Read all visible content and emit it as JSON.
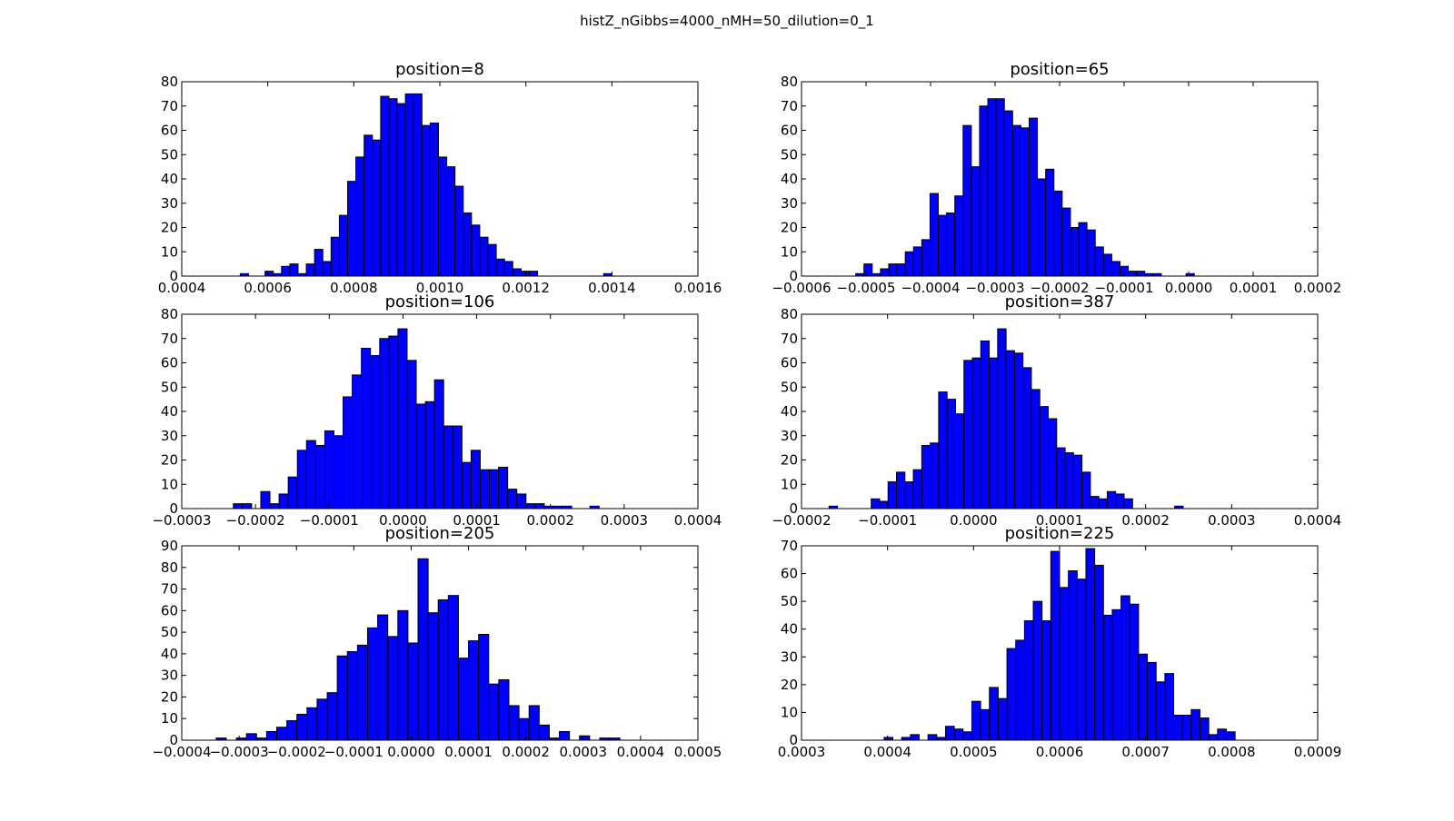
{
  "figure": {
    "suptitle": "histZ_nGibbs=4000_nMH=50_dilution=0_1"
  },
  "colors": {
    "bar_fill": "#0000ff",
    "bar_edge": "#000000",
    "axes": "#000000",
    "background": "#ffffff"
  },
  "chart_data": [
    {
      "type": "bar",
      "title": "position=8",
      "xlabel": "",
      "ylabel": "",
      "xlim": [
        0.0004,
        0.0016
      ],
      "ylim": [
        0,
        80
      ],
      "xticks": [
        "0.0004",
        "0.0006",
        "0.0008",
        "0.0010",
        "0.0012",
        "0.0014",
        "0.0016"
      ],
      "yticks": [
        "0",
        "10",
        "20",
        "30",
        "40",
        "50",
        "60",
        "70",
        "80"
      ],
      "bin_start": 0.000536,
      "bin_width": 1.92e-05,
      "values": [
        1,
        0,
        0,
        2,
        1,
        4,
        5,
        1,
        5,
        11,
        6,
        16,
        25,
        39,
        49,
        58,
        56,
        74,
        73,
        71,
        75,
        75,
        62,
        63,
        49,
        45,
        37,
        26,
        21,
        16,
        13,
        7,
        6,
        3,
        2,
        2,
        0,
        0,
        0,
        0,
        0,
        0,
        0,
        0,
        1
      ]
    },
    {
      "type": "bar",
      "title": "position=65",
      "xlabel": "",
      "ylabel": "",
      "xlim": [
        -0.0006,
        0.0002
      ],
      "ylim": [
        0,
        80
      ],
      "xticks": [
        "−0.0006",
        "−0.0005",
        "−0.0004",
        "−0.0003",
        "−0.0002",
        "−0.0001",
        "0.0000",
        "0.0001",
        "0.0002"
      ],
      "yticks": [
        "0",
        "10",
        "20",
        "30",
        "40",
        "50",
        "60",
        "70",
        "80"
      ],
      "bin_start": -0.000516,
      "bin_width": 1.28e-05,
      "values": [
        1,
        5,
        1,
        3,
        5,
        5,
        10,
        12,
        15,
        34,
        25,
        26,
        33,
        62,
        45,
        70,
        73,
        73,
        68,
        62,
        61,
        65,
        40,
        44,
        35,
        28,
        20,
        22,
        19,
        12,
        9,
        6,
        4,
        2,
        2,
        1,
        1,
        0,
        0,
        0,
        1
      ]
    },
    {
      "type": "bar",
      "title": "position=106",
      "xlabel": "",
      "ylabel": "",
      "xlim": [
        -0.0003,
        0.0004
      ],
      "ylim": [
        0,
        80
      ],
      "xticks": [
        "−0.0003",
        "−0.0002",
        "−0.0001",
        "0.0000",
        "0.0001",
        "0.0002",
        "0.0003",
        "0.0004"
      ],
      "yticks": [
        "0",
        "10",
        "20",
        "30",
        "40",
        "50",
        "60",
        "70",
        "80"
      ],
      "bin_start": -0.00023,
      "bin_width": 1.24e-05,
      "values": [
        2,
        2,
        0,
        7,
        2,
        6,
        13,
        24,
        28,
        26,
        32,
        30,
        46,
        55,
        66,
        63,
        70,
        71,
        74,
        61,
        43,
        44,
        53,
        34,
        34,
        19,
        24,
        16,
        16,
        17,
        8,
        6,
        2,
        2,
        1,
        1,
        1,
        0,
        0,
        1
      ]
    },
    {
      "type": "bar",
      "title": "position=387",
      "xlabel": "",
      "ylabel": "",
      "xlim": [
        -0.0002,
        0.0004
      ],
      "ylim": [
        0,
        80
      ],
      "xticks": [
        "−0.0002",
        "−0.0001",
        "0.0000",
        "0.0001",
        "0.0002",
        "0.0003",
        "0.0004"
      ],
      "yticks": [
        "0",
        "10",
        "20",
        "30",
        "40",
        "50",
        "60",
        "70",
        "80"
      ],
      "bin_start": -0.000168,
      "bin_width": 9.8e-06,
      "values": [
        1,
        0,
        0,
        0,
        0,
        4,
        3,
        11,
        15,
        11,
        16,
        26,
        27,
        48,
        45,
        39,
        61,
        62,
        69,
        62,
        74,
        65,
        64,
        58,
        49,
        42,
        37,
        25,
        23,
        22,
        15,
        5,
        4,
        7,
        6,
        4,
        0,
        0,
        0,
        0,
        0,
        1
      ]
    },
    {
      "type": "bar",
      "title": "position=205",
      "xlabel": "",
      "ylabel": "",
      "xlim": [
        -0.0004,
        0.0005
      ],
      "ylim": [
        0,
        90
      ],
      "xticks": [
        "−0.0004",
        "−0.0003",
        "−0.0002",
        "−0.0001",
        "0.0000",
        "0.0001",
        "0.0002",
        "0.0003",
        "0.0004",
        "0.0005"
      ],
      "yticks": [
        "0",
        "10",
        "20",
        "30",
        "40",
        "50",
        "60",
        "70",
        "80",
        "90"
      ],
      "bin_start": -0.00034,
      "bin_width": 1.76e-05,
      "values": [
        1,
        0,
        1,
        3,
        1,
        4,
        6,
        9,
        12,
        15,
        19,
        22,
        39,
        41,
        44,
        52,
        58,
        48,
        60,
        45,
        84,
        59,
        65,
        67,
        38,
        46,
        49,
        26,
        28,
        16,
        10,
        16,
        7,
        1,
        4,
        0,
        2,
        0,
        1,
        1
      ]
    },
    {
      "type": "bar",
      "title": "position=225",
      "xlabel": "",
      "ylabel": "",
      "xlim": [
        0.0003,
        0.0009
      ],
      "ylim": [
        0,
        70
      ],
      "xticks": [
        "0.0003",
        "0.0004",
        "0.0005",
        "0.0006",
        "0.0007",
        "0.0008",
        "0.0009"
      ],
      "yticks": [
        "0",
        "10",
        "20",
        "30",
        "40",
        "50",
        "60",
        "70"
      ],
      "bin_start": 0.000396,
      "bin_width": 1.02e-05,
      "values": [
        1,
        0,
        1,
        2,
        0,
        2,
        1,
        5,
        4,
        3,
        14,
        11,
        19,
        15,
        33,
        36,
        43,
        50,
        43,
        68,
        55,
        61,
        58,
        69,
        63,
        45,
        47,
        52,
        49,
        31,
        28,
        21,
        24,
        9,
        9,
        11,
        8,
        2,
        4,
        3
      ]
    }
  ]
}
